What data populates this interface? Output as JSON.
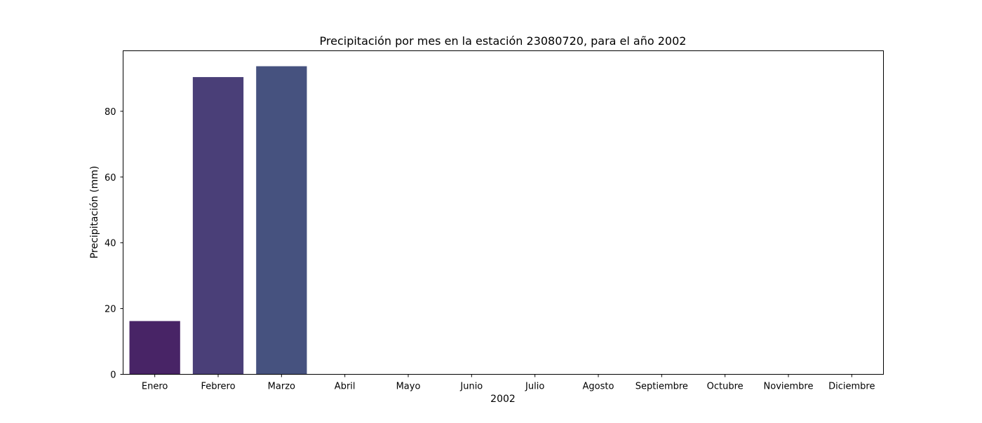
{
  "chart_data": {
    "type": "bar",
    "title": "Precipitación por mes en la estación 23080720, para el año 2002",
    "xlabel": "2002",
    "ylabel": "Precipitación (mm)",
    "categories": [
      "Enero",
      "Febrero",
      "Marzo",
      "Abril",
      "Mayo",
      "Junio",
      "Julio",
      "Agosto",
      "Septiembre",
      "Octubre",
      "Noviembre",
      "Diciembre"
    ],
    "values": [
      16.2,
      90.4,
      93.7,
      0,
      0,
      0,
      0,
      0,
      0,
      0,
      0,
      0
    ],
    "bar_colors": [
      "#482466",
      "#4a3f78",
      "#46527f",
      "#3f647f",
      "#37777f",
      "#2f897e",
      "#2a9a79",
      "#38ab6e",
      "#5abb5e",
      "#86c84a",
      "#b5d236",
      "#e4d82f"
    ],
    "ylim": [
      0,
      98.4
    ],
    "yticks": [
      0,
      20,
      40,
      60,
      80
    ],
    "grid": false,
    "legend": "none"
  }
}
